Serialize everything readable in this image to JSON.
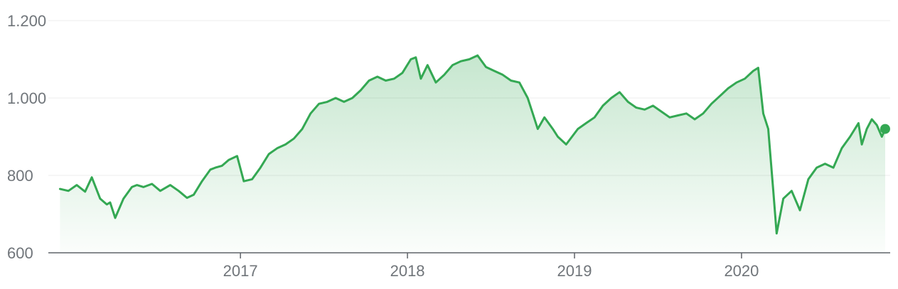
{
  "chart_data": {
    "type": "area",
    "title": "",
    "xlabel": "",
    "ylabel": "",
    "ylim": [
      600,
      1200
    ],
    "grid": true,
    "y_ticks": [
      {
        "value": 1200,
        "label": "1.200"
      },
      {
        "value": 1000,
        "label": "1.000"
      },
      {
        "value": 800,
        "label": "800"
      },
      {
        "value": 600,
        "label": "600"
      }
    ],
    "x_ticks": [
      {
        "value": 2017.0,
        "label": "2017"
      },
      {
        "value": 2018.0,
        "label": "2018"
      },
      {
        "value": 2019.0,
        "label": "2019"
      },
      {
        "value": 2020.0,
        "label": "2020"
      }
    ],
    "xlim": [
      2015.85,
      2020.89
    ],
    "colors": {
      "line": "#34a853",
      "fill": "#34a853",
      "axis": "#5f6368",
      "grid": "#ececec",
      "text": "#70757a"
    },
    "series": [
      {
        "x": [
          2015.92,
          2015.97,
          2016.02,
          2016.07,
          2016.11,
          2016.16,
          2016.2,
          2016.22,
          2016.25,
          2016.3,
          2016.35,
          2016.38,
          2016.42,
          2016.47,
          2016.52,
          2016.58,
          2016.63,
          2016.68,
          2016.72,
          2016.77,
          2016.82,
          2016.85,
          2016.89,
          2016.93,
          2016.98,
          2017.02,
          2017.07,
          2017.12,
          2017.17,
          2017.22,
          2017.27,
          2017.32,
          2017.37,
          2017.42,
          2017.47,
          2017.52,
          2017.57,
          2017.62,
          2017.67,
          2017.72,
          2017.77,
          2017.82,
          2017.87,
          2017.92,
          2017.97,
          2018.02,
          2018.05,
          2018.08,
          2018.12,
          2018.17,
          2018.22,
          2018.27,
          2018.32,
          2018.37,
          2018.42,
          2018.47,
          2018.52,
          2018.57,
          2018.62,
          2018.67,
          2018.72,
          2018.75,
          2018.78,
          2018.82,
          2018.87,
          2018.9,
          2018.95,
          2019.02,
          2019.07,
          2019.12,
          2019.17,
          2019.22,
          2019.27,
          2019.32,
          2019.37,
          2019.42,
          2019.47,
          2019.52,
          2019.57,
          2019.62,
          2019.67,
          2019.72,
          2019.77,
          2019.82,
          2019.87,
          2019.92,
          2019.97,
          2020.02,
          2020.07,
          2020.1,
          2020.13,
          2020.16,
          2020.19,
          2020.21,
          2020.25,
          2020.3,
          2020.35,
          2020.4,
          2020.45,
          2020.5,
          2020.55,
          2020.6,
          2020.65,
          2020.7,
          2020.72,
          2020.75,
          2020.78,
          2020.81,
          2020.84,
          2020.86
        ],
        "y": [
          765,
          760,
          775,
          758,
          795,
          740,
          725,
          730,
          690,
          740,
          770,
          775,
          770,
          778,
          760,
          775,
          760,
          742,
          750,
          785,
          815,
          820,
          825,
          840,
          850,
          785,
          790,
          820,
          855,
          870,
          880,
          895,
          920,
          960,
          985,
          990,
          1000,
          990,
          1000,
          1020,
          1045,
          1055,
          1045,
          1050,
          1065,
          1100,
          1105,
          1050,
          1085,
          1040,
          1060,
          1085,
          1095,
          1100,
          1110,
          1080,
          1070,
          1060,
          1045,
          1040,
          1000,
          960,
          920,
          950,
          920,
          900,
          880,
          920,
          935,
          950,
          980,
          1000,
          1015,
          990,
          975,
          970,
          980,
          965,
          950,
          955,
          960,
          945,
          960,
          985,
          1005,
          1025,
          1040,
          1050,
          1070,
          1078,
          960,
          920,
          760,
          650,
          740,
          760,
          710,
          790,
          820,
          830,
          820,
          870,
          900,
          935,
          880,
          920,
          945,
          930,
          900,
          920
        ]
      }
    ]
  }
}
